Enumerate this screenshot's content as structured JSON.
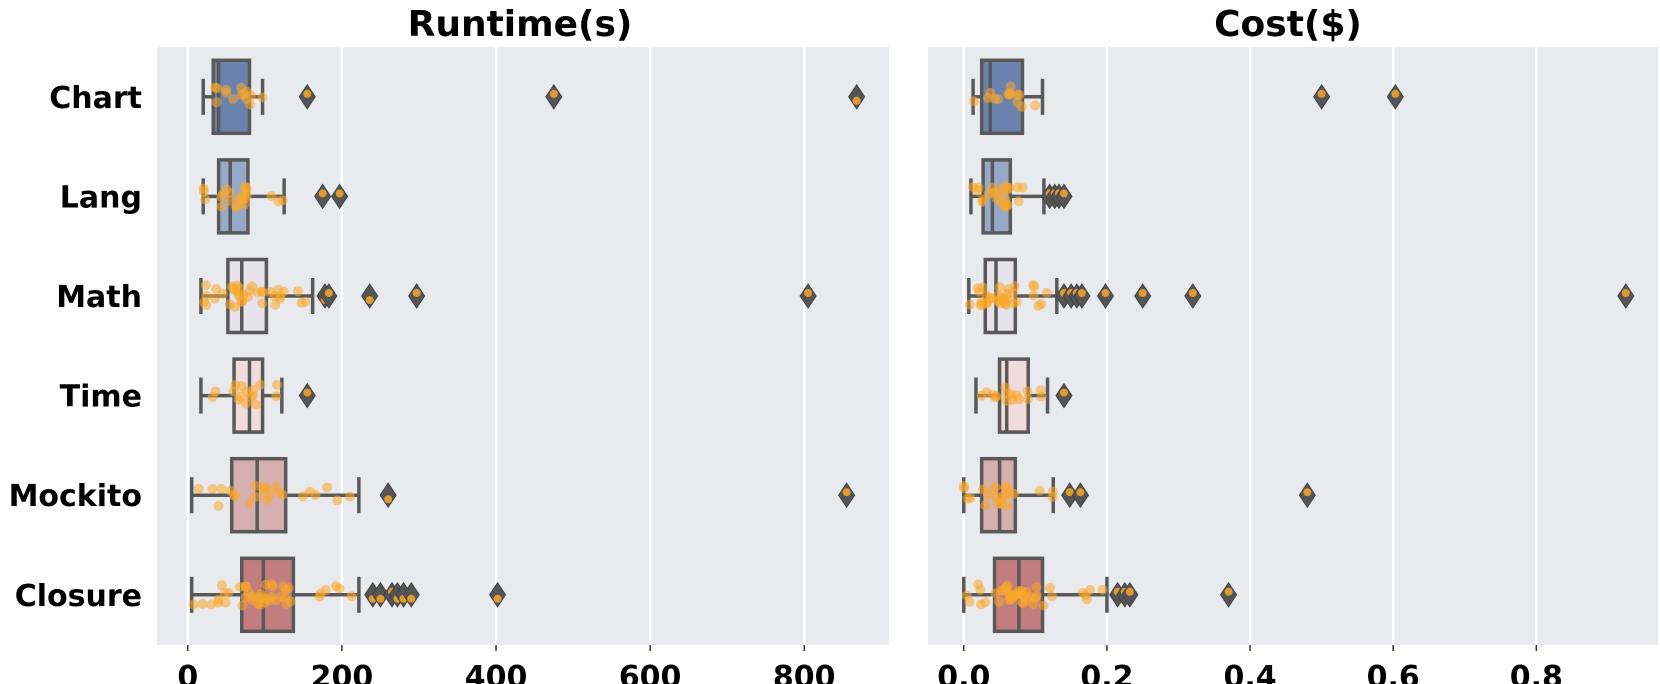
{
  "chart_data": [
    {
      "type": "box",
      "title": "Runtime(s)",
      "categories": [
        "Chart",
        "Lang",
        "Math",
        "Time",
        "Mockito",
        "Closure"
      ],
      "xlim": [
        -40,
        910
      ],
      "xticks": [
        0,
        200,
        400,
        600,
        800
      ],
      "xtick_labels": [
        "0",
        "200",
        "400",
        "600",
        "800"
      ],
      "grid": true,
      "boxes": [
        {
          "category": "Chart",
          "color": "#6b82ae",
          "whislo": 20,
          "q1": 33,
          "median": 40,
          "q3": 80,
          "whishi": 97,
          "fliers": [
            155,
            475,
            868
          ]
        },
        {
          "category": "Lang",
          "color": "#98a8c7",
          "whislo": 20,
          "q1": 40,
          "median": 55,
          "q3": 78,
          "whishi": 125,
          "fliers": [
            175,
            197
          ]
        },
        {
          "category": "Math",
          "color": "#e6e3eb",
          "whislo": 17,
          "q1": 52,
          "median": 70,
          "q3": 102,
          "whishi": 162,
          "fliers": [
            178,
            183,
            236,
            297,
            805
          ]
        },
        {
          "category": "Time",
          "color": "#f0dcdc",
          "whislo": 17,
          "q1": 60,
          "median": 80,
          "q3": 97,
          "whishi": 122,
          "fliers": [
            155
          ]
        },
        {
          "category": "Mockito",
          "color": "#d6afaf",
          "whislo": 5,
          "q1": 57,
          "median": 90,
          "q3": 127,
          "whishi": 222,
          "fliers": [
            260,
            855
          ]
        },
        {
          "category": "Closure",
          "color": "#c27d7e",
          "whislo": 5,
          "q1": 70,
          "median": 98,
          "q3": 137,
          "whishi": 222,
          "fliers": [
            240,
            250,
            265,
            272,
            280,
            290,
            402
          ]
        }
      ]
    },
    {
      "type": "box",
      "title": "Cost($)",
      "categories": [
        "Chart",
        "Lang",
        "Math",
        "Time",
        "Mockito",
        "Closure"
      ],
      "xlim": [
        -0.05,
        0.97
      ],
      "xticks": [
        0.0,
        0.2,
        0.4,
        0.6,
        0.8
      ],
      "xtick_labels": [
        "0.0",
        "0.2",
        "0.4",
        "0.6",
        "0.8"
      ],
      "grid": true,
      "boxes": [
        {
          "category": "Chart",
          "color": "#6b82ae",
          "whislo": 0.013,
          "q1": 0.025,
          "median": 0.037,
          "q3": 0.082,
          "whishi": 0.11,
          "fliers": [
            0.5,
            0.603
          ]
        },
        {
          "category": "Lang",
          "color": "#98a8c7",
          "whislo": 0.01,
          "q1": 0.027,
          "median": 0.04,
          "q3": 0.065,
          "whishi": 0.112,
          "fliers": [
            0.12,
            0.127,
            0.133,
            0.14
          ]
        },
        {
          "category": "Math",
          "color": "#e6e3eb",
          "whislo": 0.007,
          "q1": 0.03,
          "median": 0.045,
          "q3": 0.072,
          "whishi": 0.13,
          "fliers": [
            0.14,
            0.15,
            0.158,
            0.165,
            0.198,
            0.25,
            0.32,
            0.925
          ]
        },
        {
          "category": "Time",
          "color": "#f0dcdc",
          "whislo": 0.017,
          "q1": 0.05,
          "median": 0.06,
          "q3": 0.09,
          "whishi": 0.117,
          "fliers": [
            0.14
          ]
        },
        {
          "category": "Mockito",
          "color": "#d6afaf",
          "whislo": 0.0,
          "q1": 0.025,
          "median": 0.05,
          "q3": 0.072,
          "whishi": 0.125,
          "fliers": [
            0.148,
            0.163,
            0.48
          ]
        },
        {
          "category": "Closure",
          "color": "#c27d7e",
          "whislo": 0.0,
          "q1": 0.043,
          "median": 0.077,
          "q3": 0.11,
          "whishi": 0.2,
          "fliers": [
            0.215,
            0.225,
            0.232,
            0.37
          ]
        }
      ]
    }
  ]
}
